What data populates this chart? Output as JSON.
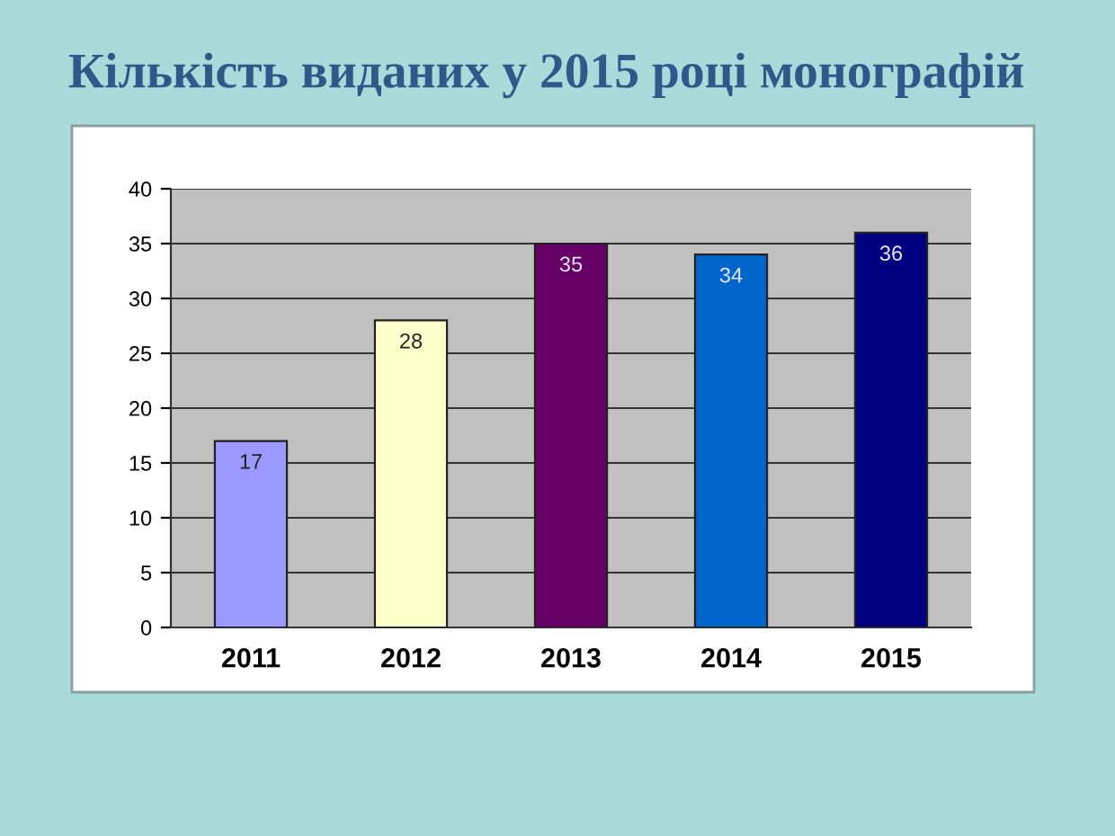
{
  "chart_data": {
    "type": "bar",
    "title": "Кількість виданих у 2015 році монографій",
    "categories": [
      "2011",
      "2012",
      "2013",
      "2014",
      "2015"
    ],
    "values": [
      17,
      28,
      35,
      34,
      36
    ],
    "colors": [
      "#9999ff",
      "#ffffcc",
      "#660066",
      "#0066cc",
      "#000080"
    ],
    "ylim": [
      0,
      40
    ],
    "yticks": [
      0,
      5,
      10,
      15,
      20,
      25,
      30,
      35,
      40
    ],
    "grid": "y",
    "data_labels": true,
    "legend": false
  }
}
